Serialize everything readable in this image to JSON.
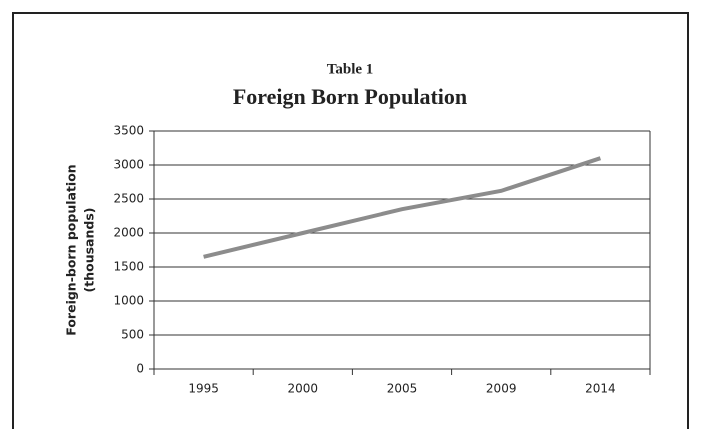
{
  "chart_data": {
    "type": "line",
    "title": "Table 1",
    "subtitle": "Foreign Born Population",
    "ylabel": [
      "Foreign-born population",
      "(thousands)"
    ],
    "categories": [
      "1995",
      "2000",
      "2005",
      "2009",
      "2014"
    ],
    "series": [
      {
        "name": "Foreign-born population",
        "color": "#8c8c8c",
        "values": [
          1650,
          2000,
          2350,
          2620,
          3100
        ]
      }
    ],
    "ylim": [
      0,
      3500
    ],
    "yticks": [
      0,
      500,
      1000,
      1500,
      2000,
      2500,
      3000,
      3500
    ],
    "grid": true
  }
}
